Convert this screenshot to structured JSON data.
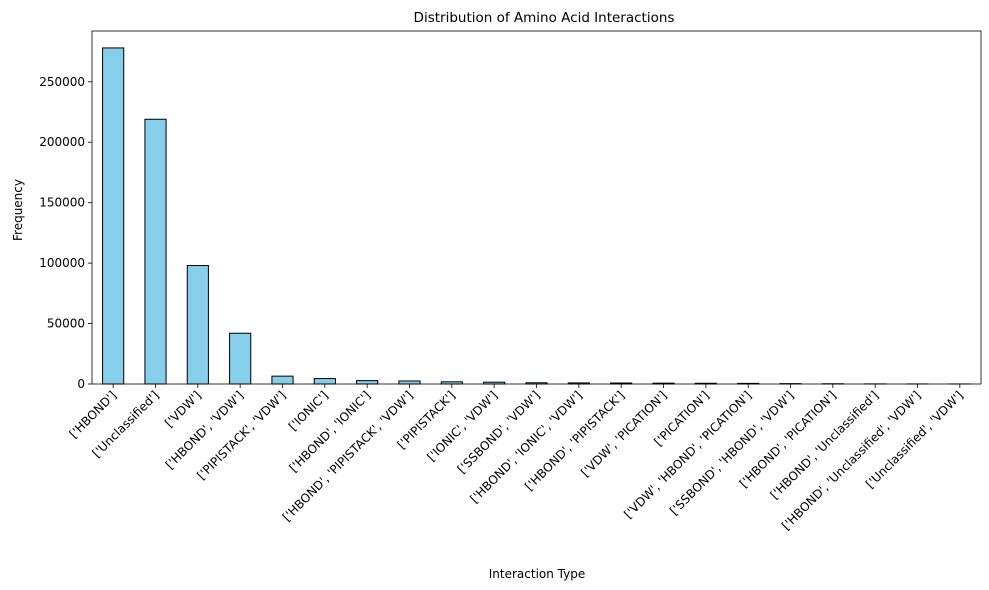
{
  "chart_data": {
    "type": "bar",
    "title": "Distribution of Amino Acid Interactions",
    "xlabel": "Interaction Type",
    "ylabel": "Frequency",
    "ylim": [
      0,
      292000
    ],
    "yticks": [
      0,
      50000,
      100000,
      150000,
      200000,
      250000
    ],
    "grid": false,
    "bar_color": "#87ceeb",
    "edge_color": "#000000",
    "categories": [
      "['HBOND']",
      "['Unclassified']",
      "['VDW']",
      "['HBOND', 'VDW']",
      "['PIPISTACK', 'VDW']",
      "['IONIC']",
      "['HBOND', 'IONIC']",
      "['HBOND', 'PIPISTACK', 'VDW']",
      "['PIPISTACK']",
      "['IONIC', 'VDW']",
      "['SSBOND', 'VDW']",
      "['HBOND', 'IONIC', 'VDW']",
      "['HBOND', 'PIPISTACK']",
      "['VDW', 'PICATION']",
      "['PICATION']",
      "['VDW', 'HBOND', 'PICATION']",
      "['SSBOND', 'HBOND', 'VDW']",
      "['HBOND', 'PICATION']",
      "['HBOND', 'Unclassified']",
      "['HBOND', 'Unclassified', 'VDW']",
      "['Unclassified', 'VDW']"
    ],
    "values": [
      278000,
      219000,
      98000,
      42000,
      6500,
      4500,
      2800,
      2500,
      1800,
      1500,
      1000,
      900,
      800,
      700,
      600,
      500,
      300,
      200,
      100,
      50,
      30
    ]
  }
}
